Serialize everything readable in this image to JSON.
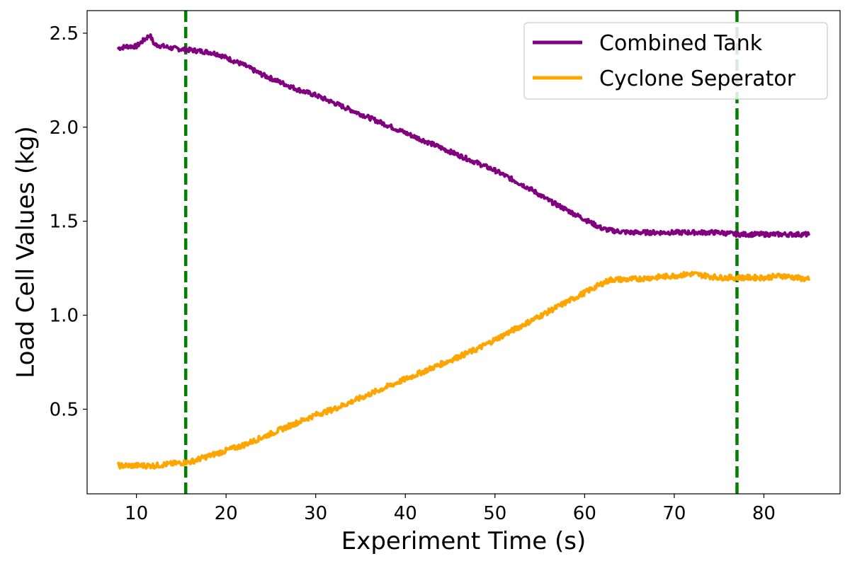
{
  "chart_data": {
    "type": "line",
    "title": "",
    "xlabel": "Experiment Time (s)",
    "ylabel": "Load Cell Values (kg)",
    "xlim": [
      4.5,
      88.5
    ],
    "ylim": [
      0.05,
      2.62
    ],
    "xticks": [
      10,
      20,
      30,
      40,
      50,
      60,
      70,
      80
    ],
    "yticks": [
      0.5,
      1.0,
      1.5,
      2.0,
      2.5
    ],
    "xtick_labels": [
      "10",
      "20",
      "30",
      "40",
      "50",
      "60",
      "70",
      "80"
    ],
    "ytick_labels": [
      "0.5",
      "1.0",
      "1.5",
      "2.0",
      "2.5"
    ],
    "grid": false,
    "legend_position": "top-right",
    "series": [
      {
        "name": "Combined Tank",
        "color": "#800080",
        "points": [
          [
            8,
            2.42
          ],
          [
            9,
            2.43
          ],
          [
            10,
            2.43
          ],
          [
            11,
            2.47
          ],
          [
            11.5,
            2.49
          ],
          [
            12,
            2.44
          ],
          [
            14,
            2.42
          ],
          [
            16,
            2.41
          ],
          [
            18,
            2.4
          ],
          [
            19,
            2.39
          ],
          [
            20,
            2.37
          ],
          [
            22,
            2.33
          ],
          [
            24,
            2.28
          ],
          [
            26,
            2.24
          ],
          [
            28,
            2.2
          ],
          [
            30,
            2.17
          ],
          [
            32,
            2.13
          ],
          [
            34,
            2.09
          ],
          [
            36,
            2.05
          ],
          [
            38,
            2.01
          ],
          [
            40,
            1.97
          ],
          [
            42,
            1.93
          ],
          [
            44,
            1.89
          ],
          [
            46,
            1.85
          ],
          [
            48,
            1.81
          ],
          [
            50,
            1.77
          ],
          [
            52,
            1.72
          ],
          [
            54,
            1.67
          ],
          [
            56,
            1.61
          ],
          [
            58,
            1.56
          ],
          [
            60,
            1.51
          ],
          [
            62,
            1.46
          ],
          [
            63,
            1.45
          ],
          [
            65,
            1.44
          ],
          [
            70,
            1.44
          ],
          [
            75,
            1.44
          ],
          [
            77,
            1.43
          ],
          [
            80,
            1.43
          ],
          [
            82,
            1.43
          ],
          [
            85,
            1.43
          ]
        ]
      },
      {
        "name": "Cyclone Seperator",
        "color": "#FFA500",
        "points": [
          [
            8,
            0.2
          ],
          [
            10,
            0.2
          ],
          [
            12,
            0.2
          ],
          [
            14,
            0.21
          ],
          [
            16,
            0.22
          ],
          [
            18,
            0.25
          ],
          [
            20,
            0.28
          ],
          [
            22,
            0.31
          ],
          [
            24,
            0.35
          ],
          [
            26,
            0.39
          ],
          [
            28,
            0.43
          ],
          [
            30,
            0.47
          ],
          [
            32,
            0.5
          ],
          [
            34,
            0.54
          ],
          [
            36,
            0.58
          ],
          [
            38,
            0.62
          ],
          [
            40,
            0.66
          ],
          [
            42,
            0.7
          ],
          [
            44,
            0.74
          ],
          [
            46,
            0.78
          ],
          [
            48,
            0.82
          ],
          [
            50,
            0.87
          ],
          [
            52,
            0.92
          ],
          [
            54,
            0.97
          ],
          [
            56,
            1.02
          ],
          [
            58,
            1.07
          ],
          [
            60,
            1.12
          ],
          [
            62,
            1.17
          ],
          [
            63,
            1.19
          ],
          [
            65,
            1.19
          ],
          [
            70,
            1.21
          ],
          [
            72,
            1.22
          ],
          [
            75,
            1.2
          ],
          [
            80,
            1.2
          ],
          [
            82,
            1.21
          ],
          [
            85,
            1.19
          ]
        ]
      }
    ],
    "vertical_lines": [
      {
        "x": 15.5,
        "color": "#008000",
        "style": "dashed"
      },
      {
        "x": 77.0,
        "color": "#008000",
        "style": "dashed"
      }
    ]
  }
}
